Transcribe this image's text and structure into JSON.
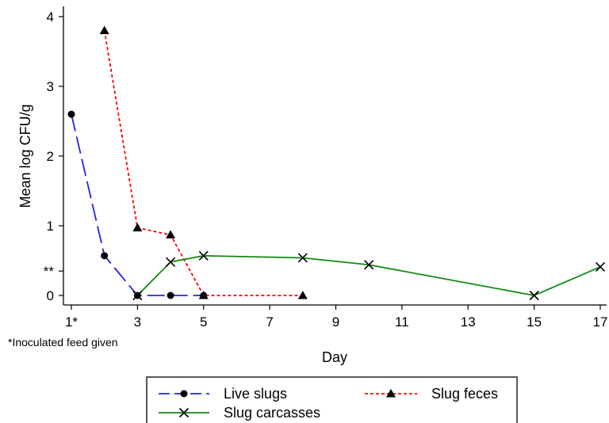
{
  "chart_data": {
    "type": "line",
    "title": "",
    "xlabel": "Day",
    "ylabel": "Mean log CFU/g",
    "xlim": [
      1,
      17
    ],
    "ylim": [
      0,
      4
    ],
    "x_ticks": [
      1,
      3,
      5,
      7,
      9,
      11,
      13,
      15,
      17
    ],
    "x_tick_labels": [
      "1*",
      "3",
      "5",
      "7",
      "9",
      "11",
      "13",
      "15",
      "17"
    ],
    "y_ticks": [
      0,
      1,
      2,
      3,
      4
    ],
    "y_tick_labels": [
      "0",
      "1",
      "2",
      "3",
      "4"
    ],
    "y_extra_tick": {
      "value": 0.35,
      "label": "**"
    },
    "footnote": "*Inoculated feed given",
    "grid": false,
    "legend_position": "bottom",
    "series": [
      {
        "name": "Live slugs",
        "color": "#2323e8",
        "dash": "long-dash",
        "marker": "circle",
        "x": [
          1,
          2,
          3,
          4,
          5
        ],
        "y": [
          2.6,
          0.57,
          0,
          0,
          0
        ]
      },
      {
        "name": "Slug feces",
        "color": "#ff0000",
        "dash": "dotted",
        "marker": "triangle",
        "x": [
          2,
          3,
          4,
          5,
          8
        ],
        "y": [
          3.8,
          0.97,
          0.87,
          0,
          0
        ]
      },
      {
        "name": "Slug carcasses",
        "color": "#138913",
        "dash": "solid",
        "marker": "x",
        "x": [
          3,
          4,
          5,
          8,
          10,
          15,
          17
        ],
        "y": [
          0,
          0.48,
          0.57,
          0.54,
          0.44,
          0,
          0.41
        ]
      }
    ]
  }
}
